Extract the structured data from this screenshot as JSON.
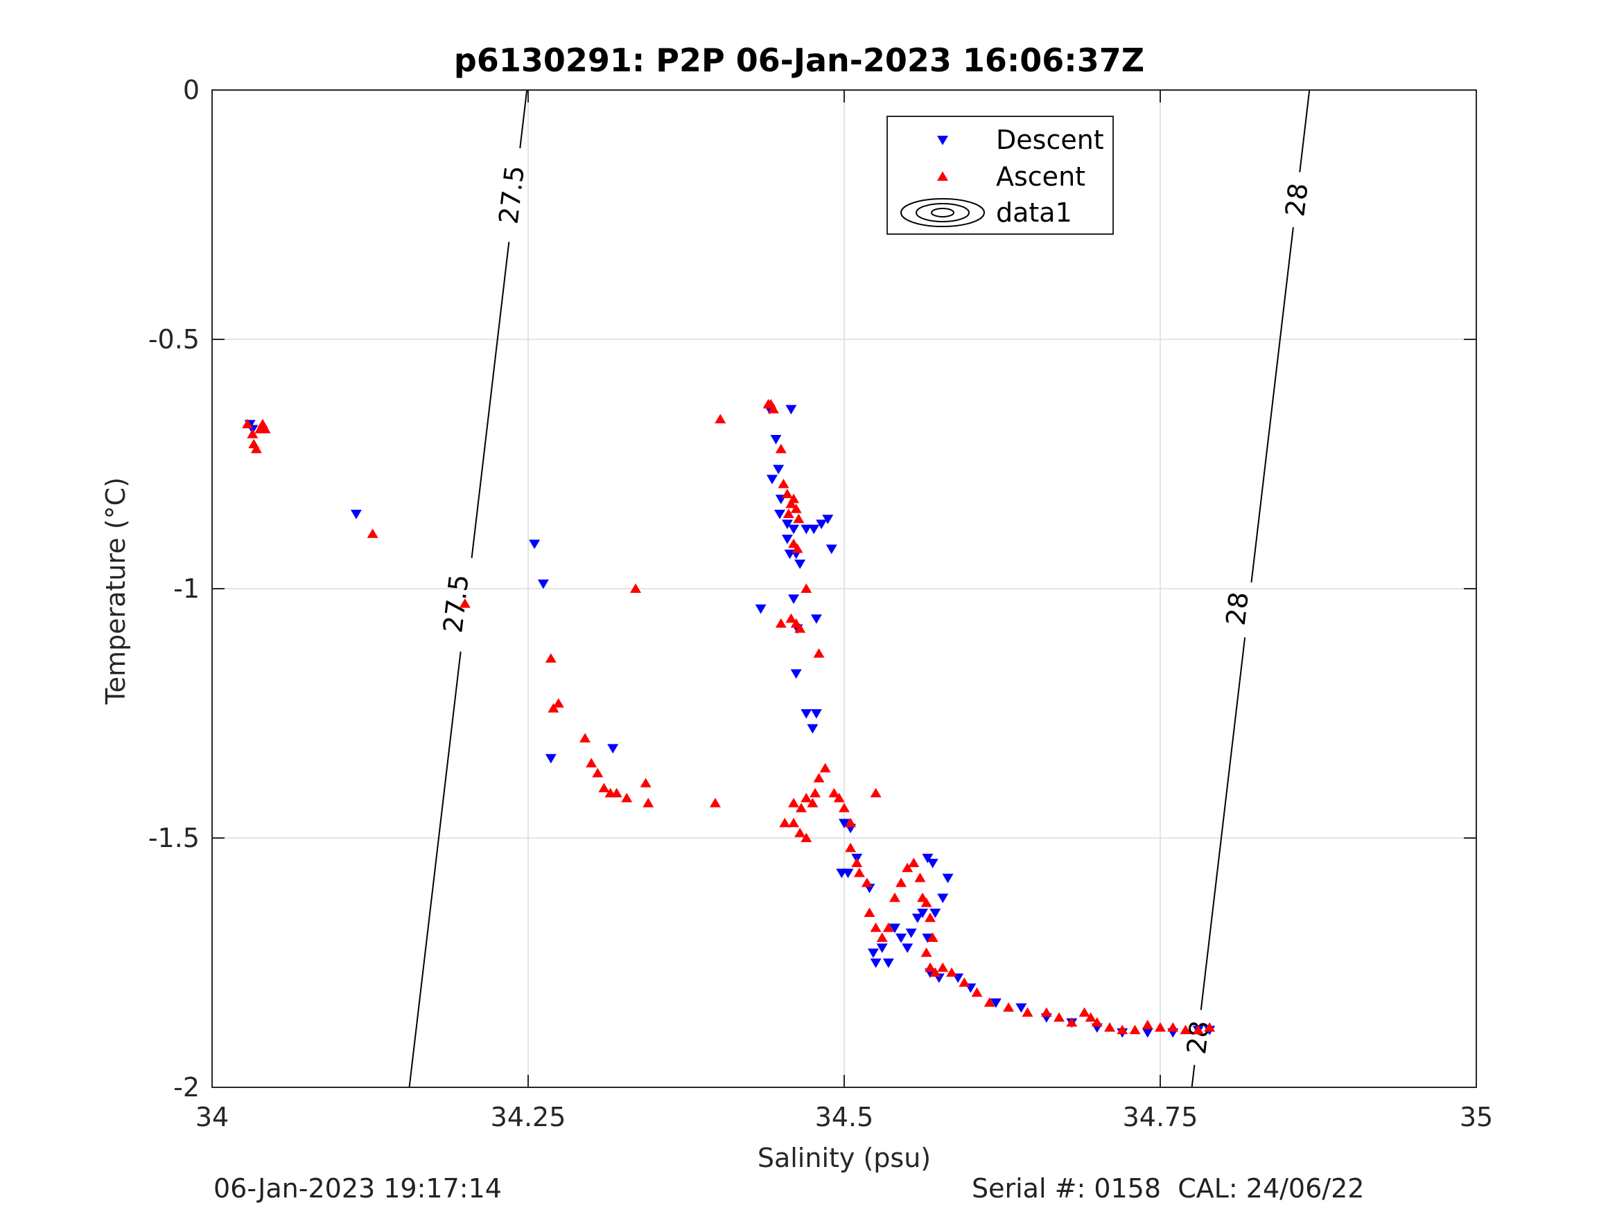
{
  "chart_data": {
    "type": "scatter",
    "title": "p6130291: P2P 06-Jan-2023 16:06:37Z",
    "xlabel": "Salinity (psu)",
    "ylabel": "Temperature (°C)",
    "xlim": [
      34,
      35
    ],
    "ylim": [
      -2,
      0
    ],
    "xticks": [
      34,
      34.25,
      34.5,
      34.75,
      35
    ],
    "xtick_labels": [
      "34",
      "34.25",
      "34.5",
      "34.75",
      "35"
    ],
    "yticks": [
      0,
      -0.5,
      -1,
      -1.5,
      -2
    ],
    "ytick_labels": [
      "0",
      "-0.5",
      "-1",
      "-1.5",
      "-2"
    ],
    "grid": true,
    "legend_position": "top-right",
    "legend": [
      "Descent",
      "Ascent",
      "data1"
    ],
    "contours": [
      {
        "level_label": "27.5",
        "points": [
          [
            34.249,
            0
          ],
          [
            34.156,
            -2
          ]
        ],
        "label_positions": [
          [
            34.237,
            -0.21
          ],
          [
            34.193,
            -1.03
          ]
        ]
      },
      {
        "level_label": "28",
        "points": [
          [
            34.868,
            0
          ],
          [
            34.775,
            -2
          ]
        ],
        "label_positions": [
          [
            34.858,
            -0.22
          ],
          [
            34.811,
            -1.04
          ],
          [
            34.78,
            -1.9
          ]
        ]
      }
    ],
    "series": [
      {
        "name": "Descent",
        "marker": "triangle-down",
        "color": "#0000ff",
        "points": [
          [
            34.03,
            -0.67
          ],
          [
            34.032,
            -0.68
          ],
          [
            34.114,
            -0.85
          ],
          [
            34.255,
            -0.91
          ],
          [
            34.262,
            -0.99
          ],
          [
            34.268,
            -1.34
          ],
          [
            34.317,
            -1.32
          ],
          [
            34.441,
            -0.64
          ],
          [
            34.446,
            -0.7
          ],
          [
            34.448,
            -0.76
          ],
          [
            34.443,
            -0.78
          ],
          [
            34.45,
            -0.82
          ],
          [
            34.449,
            -0.85
          ],
          [
            34.455,
            -0.9
          ],
          [
            34.457,
            -0.93
          ],
          [
            34.462,
            -0.93
          ],
          [
            34.465,
            -0.95
          ],
          [
            34.47,
            -0.88
          ],
          [
            34.476,
            -0.88
          ],
          [
            34.482,
            -0.87
          ],
          [
            34.487,
            -0.86
          ],
          [
            34.49,
            -0.92
          ],
          [
            34.46,
            -0.88
          ],
          [
            34.455,
            -0.87
          ],
          [
            34.458,
            -0.64
          ],
          [
            34.434,
            -1.04
          ],
          [
            34.46,
            -1.02
          ],
          [
            34.463,
            -1.08
          ],
          [
            34.478,
            -1.06
          ],
          [
            34.462,
            -1.17
          ],
          [
            34.47,
            -1.25
          ],
          [
            34.478,
            -1.25
          ],
          [
            34.475,
            -1.28
          ],
          [
            34.5,
            -1.47
          ],
          [
            34.505,
            -1.48
          ],
          [
            34.498,
            -1.57
          ],
          [
            34.503,
            -1.57
          ],
          [
            34.51,
            -1.54
          ],
          [
            34.52,
            -1.6
          ],
          [
            34.523,
            -1.73
          ],
          [
            34.525,
            -1.75
          ],
          [
            34.53,
            -1.72
          ],
          [
            34.535,
            -1.75
          ],
          [
            34.54,
            -1.68
          ],
          [
            34.545,
            -1.7
          ],
          [
            34.55,
            -1.72
          ],
          [
            34.553,
            -1.69
          ],
          [
            34.558,
            -1.66
          ],
          [
            34.562,
            -1.65
          ],
          [
            34.566,
            -1.7
          ],
          [
            34.572,
            -1.65
          ],
          [
            34.578,
            -1.62
          ],
          [
            34.582,
            -1.58
          ],
          [
            34.566,
            -1.54
          ],
          [
            34.57,
            -1.55
          ],
          [
            34.568,
            -1.77
          ],
          [
            34.575,
            -1.78
          ],
          [
            34.59,
            -1.78
          ],
          [
            34.6,
            -1.8
          ],
          [
            34.62,
            -1.83
          ],
          [
            34.64,
            -1.84
          ],
          [
            34.66,
            -1.86
          ],
          [
            34.68,
            -1.87
          ],
          [
            34.7,
            -1.88
          ],
          [
            34.72,
            -1.89
          ],
          [
            34.74,
            -1.89
          ],
          [
            34.76,
            -1.89
          ],
          [
            34.78,
            -1.885
          ],
          [
            34.789,
            -1.885
          ]
        ]
      },
      {
        "name": "Ascent",
        "marker": "triangle-up",
        "color": "#ff0000",
        "points": [
          [
            34.028,
            -0.67
          ],
          [
            34.032,
            -0.69
          ],
          [
            34.033,
            -0.71
          ],
          [
            34.035,
            -0.72
          ],
          [
            34.038,
            -0.68
          ],
          [
            34.04,
            -0.67
          ],
          [
            34.042,
            -0.68
          ],
          [
            34.127,
            -0.89
          ],
          [
            34.2,
            -1.03
          ],
          [
            34.268,
            -1.14
          ],
          [
            34.27,
            -1.24
          ],
          [
            34.274,
            -1.23
          ],
          [
            34.295,
            -1.3
          ],
          [
            34.3,
            -1.35
          ],
          [
            34.305,
            -1.37
          ],
          [
            34.31,
            -1.4
          ],
          [
            34.315,
            -1.41
          ],
          [
            34.32,
            -1.41
          ],
          [
            34.328,
            -1.42
          ],
          [
            34.343,
            -1.39
          ],
          [
            34.345,
            -1.43
          ],
          [
            34.335,
            -1.0
          ],
          [
            34.398,
            -1.43
          ],
          [
            34.402,
            -0.66
          ],
          [
            34.44,
            -0.63
          ],
          [
            34.444,
            -0.64
          ],
          [
            34.442,
            -0.63
          ],
          [
            34.45,
            -0.72
          ],
          [
            34.452,
            -0.79
          ],
          [
            34.455,
            -0.81
          ],
          [
            34.458,
            -0.83
          ],
          [
            34.46,
            -0.82
          ],
          [
            34.462,
            -0.84
          ],
          [
            34.456,
            -0.85
          ],
          [
            34.464,
            -0.86
          ],
          [
            34.46,
            -0.91
          ],
          [
            34.463,
            -0.92
          ],
          [
            34.45,
            -1.07
          ],
          [
            34.458,
            -1.06
          ],
          [
            34.462,
            -1.07
          ],
          [
            34.465,
            -1.08
          ],
          [
            34.47,
            -1.0
          ],
          [
            34.48,
            -1.13
          ],
          [
            34.48,
            -1.38
          ],
          [
            34.477,
            -1.41
          ],
          [
            34.485,
            -1.36
          ],
          [
            34.47,
            -1.42
          ],
          [
            34.475,
            -1.43
          ],
          [
            34.46,
            -1.43
          ],
          [
            34.466,
            -1.44
          ],
          [
            34.453,
            -1.47
          ],
          [
            34.46,
            -1.47
          ],
          [
            34.465,
            -1.49
          ],
          [
            34.47,
            -1.5
          ],
          [
            34.492,
            -1.41
          ],
          [
            34.496,
            -1.42
          ],
          [
            34.5,
            -1.44
          ],
          [
            34.505,
            -1.47
          ],
          [
            34.505,
            -1.52
          ],
          [
            34.51,
            -1.55
          ],
          [
            34.512,
            -1.57
          ],
          [
            34.518,
            -1.59
          ],
          [
            34.525,
            -1.41
          ],
          [
            34.52,
            -1.65
          ],
          [
            34.525,
            -1.68
          ],
          [
            34.53,
            -1.7
          ],
          [
            34.535,
            -1.68
          ],
          [
            34.54,
            -1.62
          ],
          [
            34.545,
            -1.59
          ],
          [
            34.55,
            -1.56
          ],
          [
            34.555,
            -1.55
          ],
          [
            34.56,
            -1.58
          ],
          [
            34.562,
            -1.62
          ],
          [
            34.565,
            -1.63
          ],
          [
            34.568,
            -1.66
          ],
          [
            34.57,
            -1.7
          ],
          [
            34.565,
            -1.73
          ],
          [
            34.568,
            -1.76
          ],
          [
            34.572,
            -1.77
          ],
          [
            34.578,
            -1.76
          ],
          [
            34.585,
            -1.77
          ],
          [
            34.595,
            -1.79
          ],
          [
            34.605,
            -1.81
          ],
          [
            34.615,
            -1.83
          ],
          [
            34.63,
            -1.84
          ],
          [
            34.645,
            -1.85
          ],
          [
            34.66,
            -1.85
          ],
          [
            34.67,
            -1.86
          ],
          [
            34.68,
            -1.87
          ],
          [
            34.69,
            -1.85
          ],
          [
            34.695,
            -1.86
          ],
          [
            34.7,
            -1.87
          ],
          [
            34.71,
            -1.88
          ],
          [
            34.72,
            -1.885
          ],
          [
            34.73,
            -1.885
          ],
          [
            34.74,
            -1.875
          ],
          [
            34.75,
            -1.88
          ],
          [
            34.76,
            -1.88
          ],
          [
            34.77,
            -1.885
          ],
          [
            34.78,
            -1.885
          ],
          [
            34.789,
            -1.88
          ]
        ]
      }
    ]
  },
  "footer": {
    "timestamp": "06-Jan-2023 19:17:14",
    "serial": "Serial #: 0158  CAL: 24/06/22"
  }
}
